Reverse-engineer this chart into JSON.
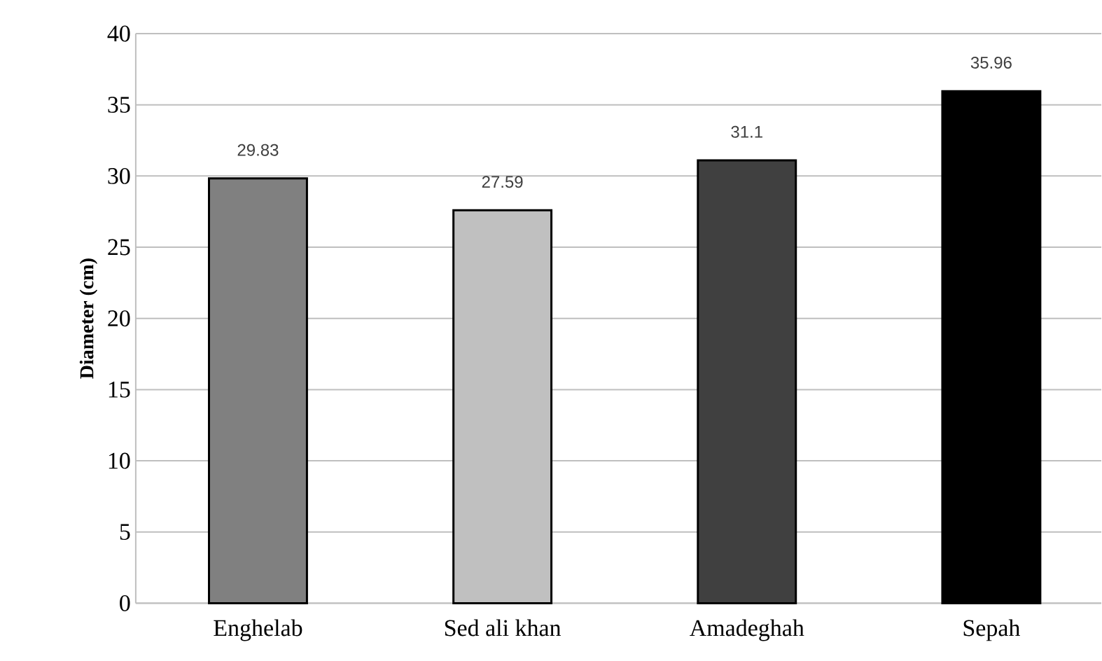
{
  "chart_data": {
    "type": "bar",
    "ylabel": "Diameter (cm)",
    "categories": [
      "Enghelab",
      "Sed ali khan",
      "Amadeghah",
      "Sepah"
    ],
    "values": [
      29.83,
      27.59,
      31.1,
      35.96
    ],
    "colors": [
      "#808080",
      "#c0c0c0",
      "#404040",
      "#000000"
    ],
    "ylim": [
      0,
      40
    ],
    "yticks": [
      0,
      5,
      10,
      15,
      20,
      25,
      30,
      35,
      40
    ],
    "grid": "y",
    "data_labels": true
  }
}
